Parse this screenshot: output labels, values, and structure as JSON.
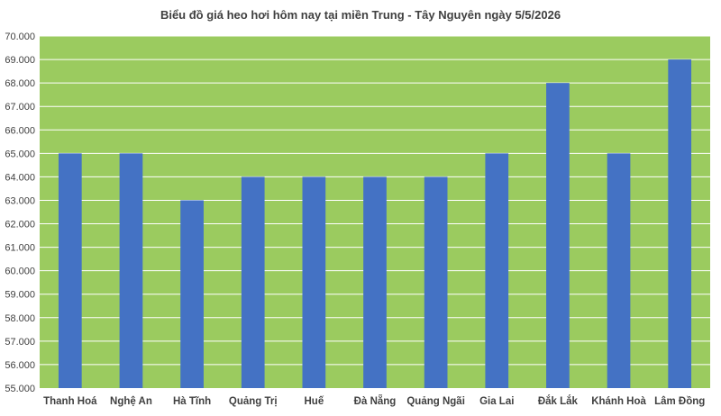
{
  "chart_data": {
    "type": "bar",
    "title": "Biểu đồ giá heo hơi hôm nay tại miền Trung - Tây Nguyên ngày 5/5/2026",
    "categories": [
      "Thanh Hoá",
      "Nghệ An",
      "Hà Tĩnh",
      "Quảng Trị",
      "Huế",
      "Đà Nẵng",
      "Quảng Ngãi",
      "Gia Lai",
      "Đắk Lắk",
      "Khánh Hoà",
      "Lâm Đồng"
    ],
    "values": [
      65000,
      65000,
      63000,
      64000,
      64000,
      64000,
      64000,
      65000,
      68000,
      65000,
      69000
    ],
    "ylim": [
      55000,
      70000
    ],
    "ytick_step": 1000,
    "y_tick_labels": [
      "55.000",
      "56.000",
      "57.000",
      "58.000",
      "59.000",
      "60.000",
      "61.000",
      "62.000",
      "63.000",
      "64.000",
      "65.000",
      "66.000",
      "67.000",
      "68.000",
      "69.000",
      "70.000"
    ],
    "xlabel": "",
    "ylabel": "",
    "grid": true,
    "legend": false,
    "colors": {
      "bar": "#4472C4",
      "plot_background": "#9BCB5F",
      "gridline": "#ffffff",
      "text": "#404040"
    }
  }
}
